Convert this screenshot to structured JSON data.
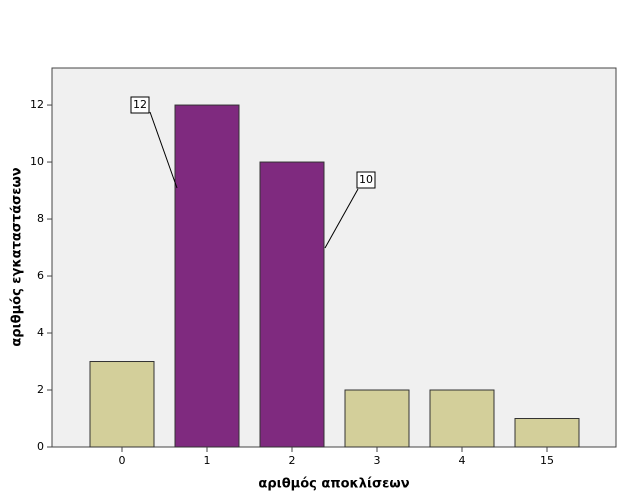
{
  "chart_data": {
    "type": "bar",
    "x_label": "αριθμός αποκλίσεων",
    "y_label": "αριθμός εγκαταστάσεων",
    "categories": [
      "0",
      "1",
      "2",
      "3",
      "4",
      "15"
    ],
    "values": [
      3,
      12,
      10,
      2,
      2,
      1
    ],
    "colors": [
      "#d3cf9a",
      "#7f2a7f",
      "#7f2a7f",
      "#d3cf9a",
      "#d3cf9a",
      "#d3cf9a"
    ],
    "ylim": [
      0,
      13.3
    ],
    "yticks": [
      0,
      2,
      4,
      6,
      8,
      10,
      12
    ],
    "grid": false
  }
}
